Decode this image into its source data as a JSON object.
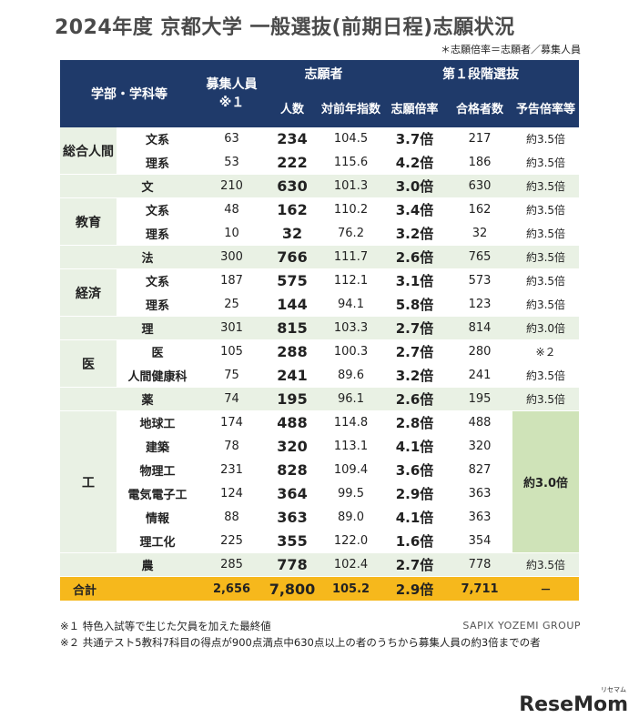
{
  "title": "2024年度 京都大学 一般選抜(前期日程)志願状況",
  "note": "＊志願倍率＝志願者／募集人員",
  "headers": {
    "dept": "学部・学科等",
    "boshu": "募集人員",
    "boshu_note": "※１",
    "shigan": "志願者",
    "ninzu": "人数",
    "zennen": "対前年指数",
    "stage1": "第１段階選抜",
    "ratio": "志願倍率",
    "passers": "合格者数",
    "yokoku": "予告倍率等"
  },
  "faculties": {
    "sogo": "総合人間",
    "kyoiku": "教育",
    "keizai": "経済",
    "i": "医",
    "ko": "工"
  },
  "rows": [
    {
      "sub": "文系",
      "cap": "63",
      "app": "234",
      "prev": "104.5",
      "ratio": "3.7倍",
      "pass": "217",
      "pre": "約3.5倍"
    },
    {
      "sub": "理系",
      "cap": "53",
      "app": "222",
      "prev": "115.6",
      "ratio": "4.2倍",
      "pass": "186",
      "pre": "約3.5倍"
    },
    {
      "sub": "文",
      "cap": "210",
      "app": "630",
      "prev": "101.3",
      "ratio": "3.0倍",
      "pass": "630",
      "pre": "約3.5倍"
    },
    {
      "sub": "文系",
      "cap": "48",
      "app": "162",
      "prev": "110.2",
      "ratio": "3.4倍",
      "pass": "162",
      "pre": "約3.5倍"
    },
    {
      "sub": "理系",
      "cap": "10",
      "app": "32",
      "prev": "76.2",
      "ratio": "3.2倍",
      "pass": "32",
      "pre": "約3.5倍"
    },
    {
      "sub": "法",
      "cap": "300",
      "app": "766",
      "prev": "111.7",
      "ratio": "2.6倍",
      "pass": "765",
      "pre": "約3.5倍"
    },
    {
      "sub": "文系",
      "cap": "187",
      "app": "575",
      "prev": "112.1",
      "ratio": "3.1倍",
      "pass": "573",
      "pre": "約3.5倍"
    },
    {
      "sub": "理系",
      "cap": "25",
      "app": "144",
      "prev": "94.1",
      "ratio": "5.8倍",
      "pass": "123",
      "pre": "約3.5倍"
    },
    {
      "sub": "理",
      "cap": "301",
      "app": "815",
      "prev": "103.3",
      "ratio": "2.7倍",
      "pass": "814",
      "pre": "約3.0倍"
    },
    {
      "sub": "医",
      "cap": "105",
      "app": "288",
      "prev": "100.3",
      "ratio": "2.7倍",
      "pass": "280",
      "pre": "※２"
    },
    {
      "sub": "人間健康科",
      "cap": "75",
      "app": "241",
      "prev": "89.6",
      "ratio": "3.2倍",
      "pass": "241",
      "pre": "約3.5倍"
    },
    {
      "sub": "薬",
      "cap": "74",
      "app": "195",
      "prev": "96.1",
      "ratio": "2.6倍",
      "pass": "195",
      "pre": "約3.5倍"
    },
    {
      "sub": "地球工",
      "cap": "174",
      "app": "488",
      "prev": "114.8",
      "ratio": "2.8倍",
      "pass": "488",
      "pre": "約3.0倍"
    },
    {
      "sub": "建築",
      "cap": "78",
      "app": "320",
      "prev": "113.1",
      "ratio": "4.1倍",
      "pass": "320"
    },
    {
      "sub": "物理工",
      "cap": "231",
      "app": "828",
      "prev": "109.4",
      "ratio": "3.6倍",
      "pass": "827"
    },
    {
      "sub": "電気電子工",
      "cap": "124",
      "app": "364",
      "prev": "99.5",
      "ratio": "2.9倍",
      "pass": "363"
    },
    {
      "sub": "情報",
      "cap": "88",
      "app": "363",
      "prev": "89.0",
      "ratio": "4.1倍",
      "pass": "363"
    },
    {
      "sub": "理工化",
      "cap": "225",
      "app": "355",
      "prev": "122.0",
      "ratio": "1.6倍",
      "pass": "354"
    },
    {
      "sub": "農",
      "cap": "285",
      "app": "778",
      "prev": "102.4",
      "ratio": "2.7倍",
      "pass": "778",
      "pre": "約3.5倍"
    }
  ],
  "total": {
    "label": "合計",
    "cap": "2,656",
    "app": "7,800",
    "prev": "105.2",
    "ratio": "2.9倍",
    "pass": "7,711",
    "pre": "－"
  },
  "credit": "SAPIX YOZEMI GROUP",
  "footnote1": "※１ 特色入試等で生じた欠員を加えた最終値",
  "footnote2": "※２ 共通テスト5教科7科目の得点が900点満点中630点以上の者のうちから募集人員の約3倍までの者",
  "logo": "ReseMom",
  "logo_small": "リセマム"
}
